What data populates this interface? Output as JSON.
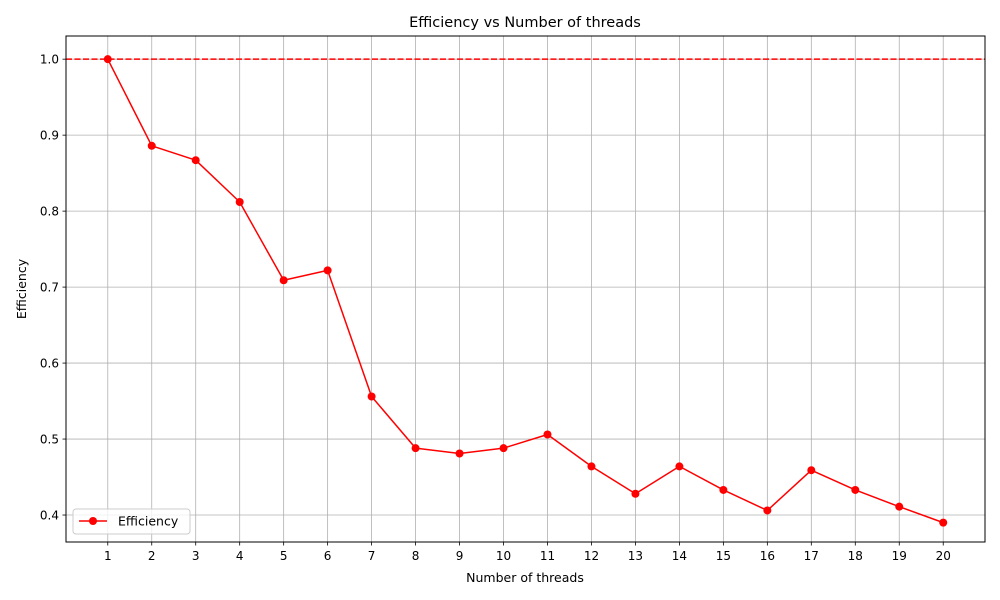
{
  "chart_data": {
    "type": "line",
    "title": "Efficiency vs Number of threads",
    "xlabel": "Number of threads",
    "ylabel": "Efficiency",
    "x": [
      1,
      2,
      3,
      4,
      5,
      6,
      7,
      8,
      9,
      10,
      11,
      12,
      13,
      14,
      15,
      16,
      17,
      18,
      19,
      20
    ],
    "series": [
      {
        "name": "Efficiency",
        "color": "#ff0000",
        "marker": "circle",
        "values": [
          1.0,
          0.886,
          0.867,
          0.812,
          0.709,
          0.722,
          0.556,
          0.488,
          0.481,
          0.488,
          0.506,
          0.464,
          0.428,
          0.464,
          0.433,
          0.406,
          0.459,
          0.433,
          0.411,
          0.39
        ]
      }
    ],
    "reference_line": {
      "y": 1.0,
      "color": "#ff0000",
      "style": "dashed"
    },
    "xticks": [
      "1",
      "2",
      "3",
      "4",
      "5",
      "6",
      "7",
      "8",
      "9",
      "10",
      "11",
      "12",
      "13",
      "14",
      "15",
      "16",
      "17",
      "18",
      "19",
      "20"
    ],
    "yticks": [
      "0.4",
      "0.5",
      "0.6",
      "0.7",
      "0.8",
      "0.9",
      "1.0"
    ],
    "xlim": [
      0.05,
      20.95
    ],
    "ylim": [
      0.3645,
      1.0305
    ],
    "grid": true,
    "legend": {
      "position": "lower-left",
      "entries": [
        "Efficiency"
      ]
    }
  }
}
